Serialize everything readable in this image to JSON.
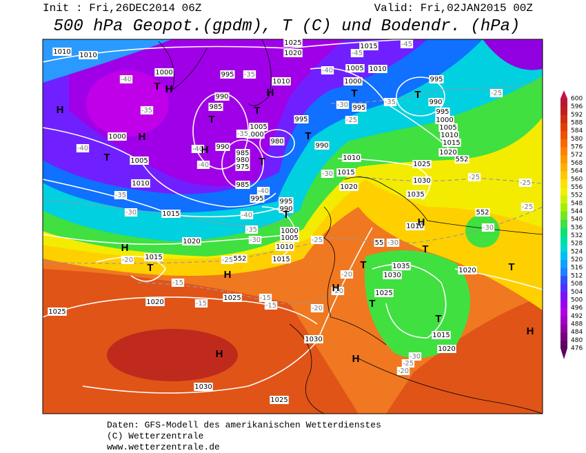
{
  "header": {
    "init": "Init : Fri,26DEC2014 06Z",
    "valid": "Valid: Fri,02JAN2015 00Z",
    "title": "500 hPa Geopot.(gpdm), T (C) und Bodendr. (hPa)"
  },
  "map": {
    "isobars": [
      "1010",
      "1010",
      "1025",
      "1020",
      "1015",
      "1005",
      "1010",
      "1000",
      "995",
      "1010",
      "1000",
      "995",
      "990",
      "990",
      "985",
      "995",
      "995",
      "1000",
      "1005",
      "1010",
      "1015",
      "1020",
      "1005",
      "1000",
      "995",
      "980",
      "990",
      "990",
      "985",
      "980",
      "975",
      "985",
      "995",
      "1000",
      "1005",
      "1010",
      "1015",
      "1020",
      "1015",
      "1020",
      "1025",
      "1025",
      "1030",
      "1030",
      "1025",
      "1010",
      "1015",
      "1020",
      "1025",
      "1030",
      "1035",
      "995",
      "990",
      "1000",
      "1005",
      "1010",
      "1015",
      "1035",
      "1030",
      "1025",
      "1020",
      "1015",
      "1020",
      "1010"
    ],
    "temperatures": [
      "-40",
      "-35",
      "-40",
      "-35",
      "-30",
      "-40",
      "-35",
      "-30",
      "-25",
      "-20",
      "-15",
      "-15",
      "-15",
      "-15",
      "-20",
      "-20",
      "-20",
      "-25",
      "-30",
      "-30",
      "-25",
      "-25",
      "-25",
      "-30",
      "-25",
      "-20",
      "-35",
      "-30",
      "-25",
      "-30",
      "-25",
      "-45",
      "-45",
      "-40",
      "-35",
      "-40",
      "-40",
      "-35",
      "-40"
    ],
    "heights": [
      "552",
      "552",
      "552",
      "55"
    ],
    "pressure_centers": [
      "H",
      "T",
      "H",
      "T",
      "H",
      "T",
      "H",
      "T",
      "H",
      "T",
      "T",
      "T",
      "T",
      "T",
      "H",
      "T",
      "H",
      "H",
      "H",
      "T",
      "T",
      "T",
      "T",
      "T",
      "H",
      "H",
      "H"
    ]
  },
  "colorbar": {
    "levels": [
      476,
      480,
      484,
      488,
      492,
      496,
      500,
      504,
      508,
      512,
      516,
      520,
      524,
      528,
      532,
      536,
      540,
      544,
      548,
      552,
      556,
      560,
      564,
      568,
      572,
      576,
      580,
      584,
      588,
      592,
      596,
      600
    ],
    "colors": [
      "#600060",
      "#780080",
      "#9000a0",
      "#a000c8",
      "#b000e0",
      "#9a00f0",
      "#7a10f8",
      "#5030ff",
      "#3050ff",
      "#2080ff",
      "#10a0ff",
      "#00c0f0",
      "#00d8d0",
      "#00e0a0",
      "#10e070",
      "#40e040",
      "#70e820",
      "#a0f000",
      "#d0f000",
      "#f0f000",
      "#ffe000",
      "#ffc800",
      "#ffb000",
      "#ff9800",
      "#ff8000",
      "#f86800",
      "#f05000",
      "#e04000",
      "#d03010",
      "#c02020",
      "#b81830",
      "#c8104c"
    ]
  },
  "footer": {
    "source": "Daten: GFS-Modell des amerikanischen Wetterdienstes",
    "copyright": "(C) Wetterzentrale",
    "url": "www.wetterzentrale.de"
  }
}
